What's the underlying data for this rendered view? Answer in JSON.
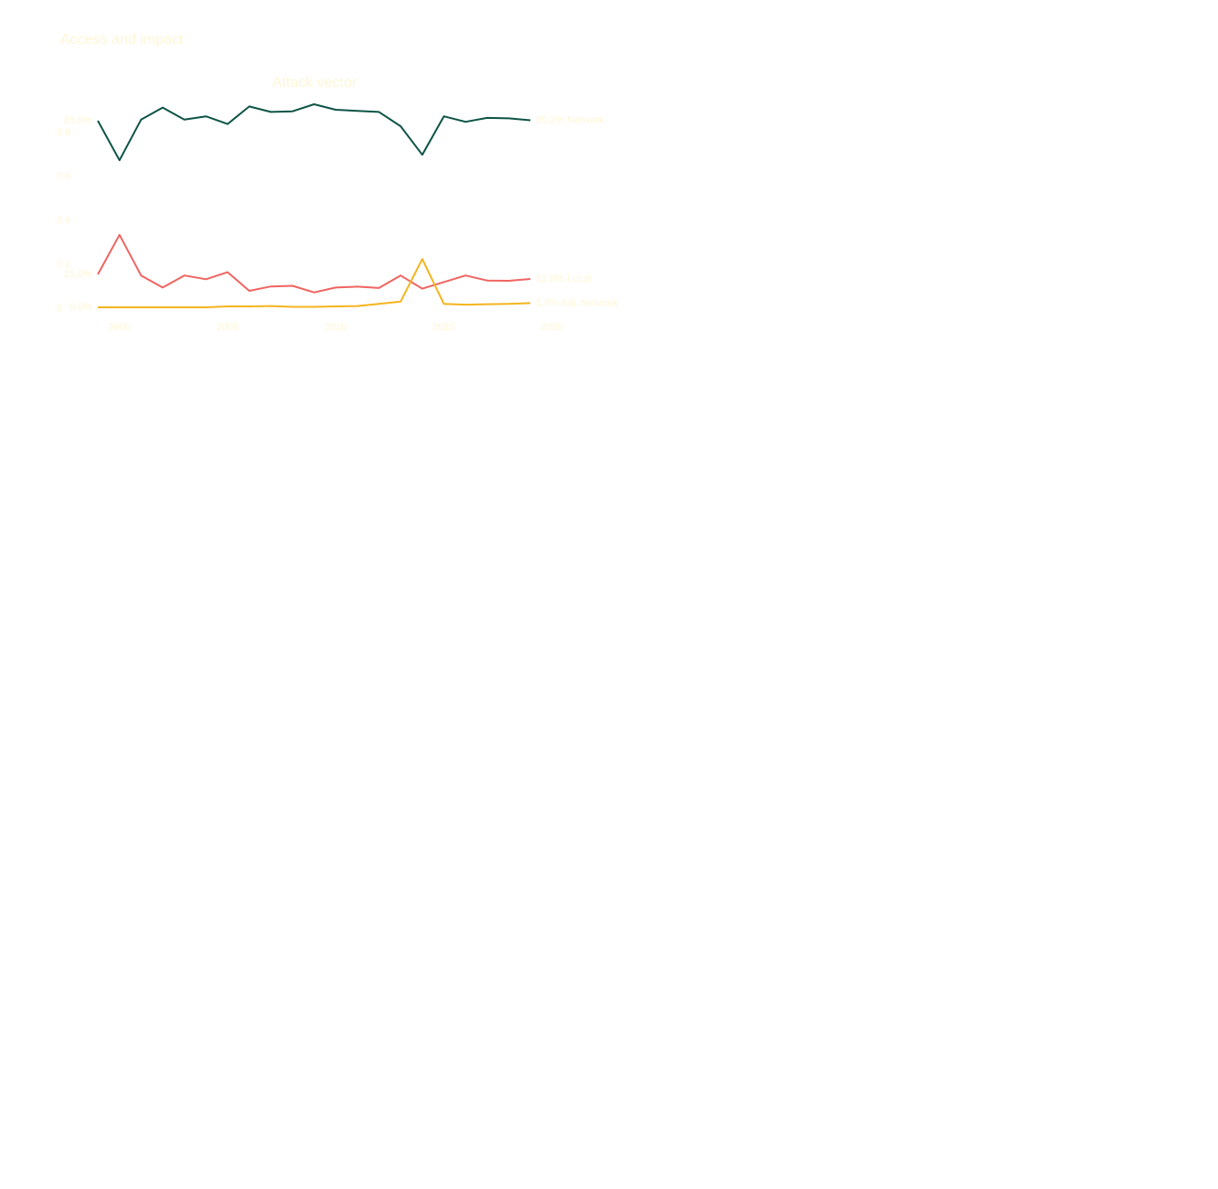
{
  "page": {
    "title": "Access and impact",
    "text_color": "#fff6d5"
  },
  "chart_data": {
    "type": "line",
    "title": "Attack vector",
    "xlabel": "",
    "ylabel": "",
    "xlim": [
      1999,
      2020
    ],
    "ylim": [
      0,
      0.93
    ],
    "grid": false,
    "legend": "none",
    "xticks": [
      2000,
      2005,
      2010,
      2015,
      2020
    ],
    "x_tick_labels": [
      "2000",
      "2005",
      "2010",
      "2015",
      "2020"
    ],
    "yticks": [
      0,
      0.2,
      0.4,
      0.6,
      0.8
    ],
    "y_tick_labels": [
      "0",
      "0.2",
      "0.4",
      "0.6",
      "0.8"
    ],
    "x": [
      1999,
      2000,
      2001,
      2002,
      2003,
      2004,
      2005,
      2006,
      2007,
      2008,
      2009,
      2010,
      2011,
      2012,
      2013,
      2014,
      2015,
      2016,
      2017,
      2018,
      2019
    ],
    "series": [
      {
        "name": "Network",
        "color": "#0d5447",
        "start_label": "85.0%",
        "end_label": "85.2% Network",
        "values": [
          0.85,
          0.67,
          0.855,
          0.91,
          0.855,
          0.87,
          0.835,
          0.915,
          0.89,
          0.893,
          0.925,
          0.9,
          0.895,
          0.89,
          0.825,
          0.695,
          0.87,
          0.845,
          0.863,
          0.861,
          0.852
        ]
      },
      {
        "name": "Local",
        "color": "#ef6461",
        "start_label": "15.0%",
        "end_label": "12.9% Local",
        "values": [
          0.15,
          0.33,
          0.145,
          0.09,
          0.145,
          0.128,
          0.16,
          0.075,
          0.095,
          0.098,
          0.068,
          0.09,
          0.094,
          0.088,
          0.145,
          0.085,
          0.115,
          0.145,
          0.122,
          0.121,
          0.129
        ]
      },
      {
        "name": "Adj. Network",
        "color": "#f5b41e",
        "start_label": "0.0%",
        "end_label": "1.9% Adj. Network",
        "values": [
          0.0,
          0.0,
          0.0,
          0.0,
          0.0,
          0.0,
          0.004,
          0.004,
          0.006,
          0.002,
          0.002,
          0.004,
          0.006,
          0.016,
          0.026,
          0.22,
          0.016,
          0.012,
          0.014,
          0.016,
          0.019
        ]
      }
    ]
  }
}
